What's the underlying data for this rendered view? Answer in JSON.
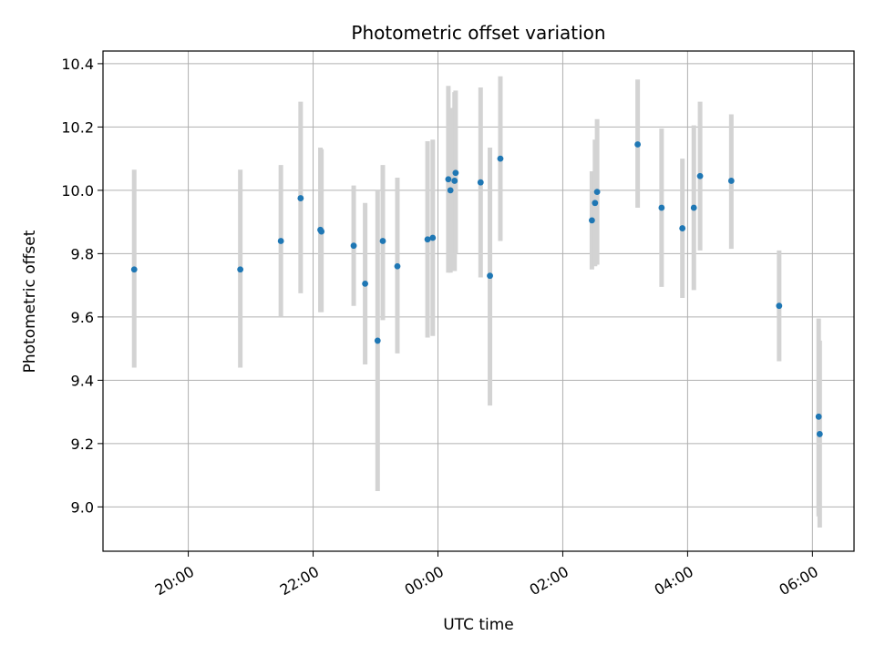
{
  "chart_data": {
    "type": "scatter",
    "title": "Photometric offset variation",
    "xlabel": "UTC time",
    "ylabel": "Photometric offset",
    "grid": true,
    "x_ticks": [
      "20:00",
      "22:00",
      "00:00",
      "02:00",
      "04:00",
      "06:00"
    ],
    "x_tick_hours": [
      20,
      22,
      24,
      26,
      28,
      30
    ],
    "y_ticks": [
      "9.0",
      "9.2",
      "9.4",
      "9.6",
      "9.8",
      "10.0",
      "10.2",
      "10.4"
    ],
    "y_tick_values": [
      9.0,
      9.2,
      9.4,
      9.6,
      9.8,
      10.0,
      10.2,
      10.4
    ],
    "xlim": [
      "18:38",
      "06:40"
    ],
    "ylim": [
      8.86,
      10.44
    ],
    "marker_color": "#1f77b4",
    "errorbar_color": "#d3d3d3",
    "points": [
      {
        "x": "19:08",
        "y": 9.75,
        "low": 9.44,
        "high": 10.065
      },
      {
        "x": "20:50",
        "y": 9.75,
        "low": 9.44,
        "high": 10.065
      },
      {
        "x": "21:29",
        "y": 9.84,
        "low": 9.6,
        "high": 10.08
      },
      {
        "x": "21:48",
        "y": 9.975,
        "low": 9.675,
        "high": 10.28
      },
      {
        "x": "22:07",
        "y": 9.875,
        "low": 9.615,
        "high": 10.135
      },
      {
        "x": "22:08",
        "y": 9.87,
        "low": 9.615,
        "high": 10.13
      },
      {
        "x": "22:39",
        "y": 9.825,
        "low": 9.635,
        "high": 10.015
      },
      {
        "x": "22:50",
        "y": 9.705,
        "low": 9.45,
        "high": 9.96
      },
      {
        "x": "23:02",
        "y": 9.525,
        "low": 9.05,
        "high": 10.0
      },
      {
        "x": "23:07",
        "y": 9.84,
        "low": 9.59,
        "high": 10.08
      },
      {
        "x": "23:21",
        "y": 9.76,
        "low": 9.485,
        "high": 10.04
      },
      {
        "x": "23:50",
        "y": 9.845,
        "low": 9.535,
        "high": 10.155
      },
      {
        "x": "23:55",
        "y": 9.85,
        "low": 9.54,
        "high": 10.16
      },
      {
        "x": "00:10",
        "y": 10.035,
        "low": 9.74,
        "high": 10.33
      },
      {
        "x": "00:12",
        "y": 10.0,
        "low": 9.74,
        "high": 10.26
      },
      {
        "x": "00:16",
        "y": 10.03,
        "low": 9.745,
        "high": 10.31
      },
      {
        "x": "00:17",
        "y": 10.055,
        "low": 9.8,
        "high": 10.315
      },
      {
        "x": "00:41",
        "y": 10.025,
        "low": 9.725,
        "high": 10.325
      },
      {
        "x": "00:50",
        "y": 9.73,
        "low": 9.32,
        "high": 10.135
      },
      {
        "x": "01:00",
        "y": 10.1,
        "low": 9.84,
        "high": 10.36
      },
      {
        "x": "02:28",
        "y": 9.905,
        "low": 9.75,
        "high": 10.06
      },
      {
        "x": "02:31",
        "y": 9.96,
        "low": 9.76,
        "high": 10.16
      },
      {
        "x": "02:33",
        "y": 9.995,
        "low": 9.765,
        "high": 10.225
      },
      {
        "x": "03:12",
        "y": 10.145,
        "low": 9.945,
        "high": 10.35
      },
      {
        "x": "03:35",
        "y": 9.945,
        "low": 9.695,
        "high": 10.195
      },
      {
        "x": "03:55",
        "y": 9.88,
        "low": 9.66,
        "high": 10.1
      },
      {
        "x": "04:06",
        "y": 9.945,
        "low": 9.685,
        "high": 10.205
      },
      {
        "x": "04:12",
        "y": 10.045,
        "low": 9.81,
        "high": 10.28
      },
      {
        "x": "04:42",
        "y": 10.03,
        "low": 9.815,
        "high": 10.24
      },
      {
        "x": "05:28",
        "y": 9.635,
        "low": 9.46,
        "high": 9.81
      },
      {
        "x": "06:06",
        "y": 9.285,
        "low": 8.97,
        "high": 9.595
      },
      {
        "x": "06:07",
        "y": 9.23,
        "low": 8.935,
        "high": 9.525
      }
    ]
  }
}
